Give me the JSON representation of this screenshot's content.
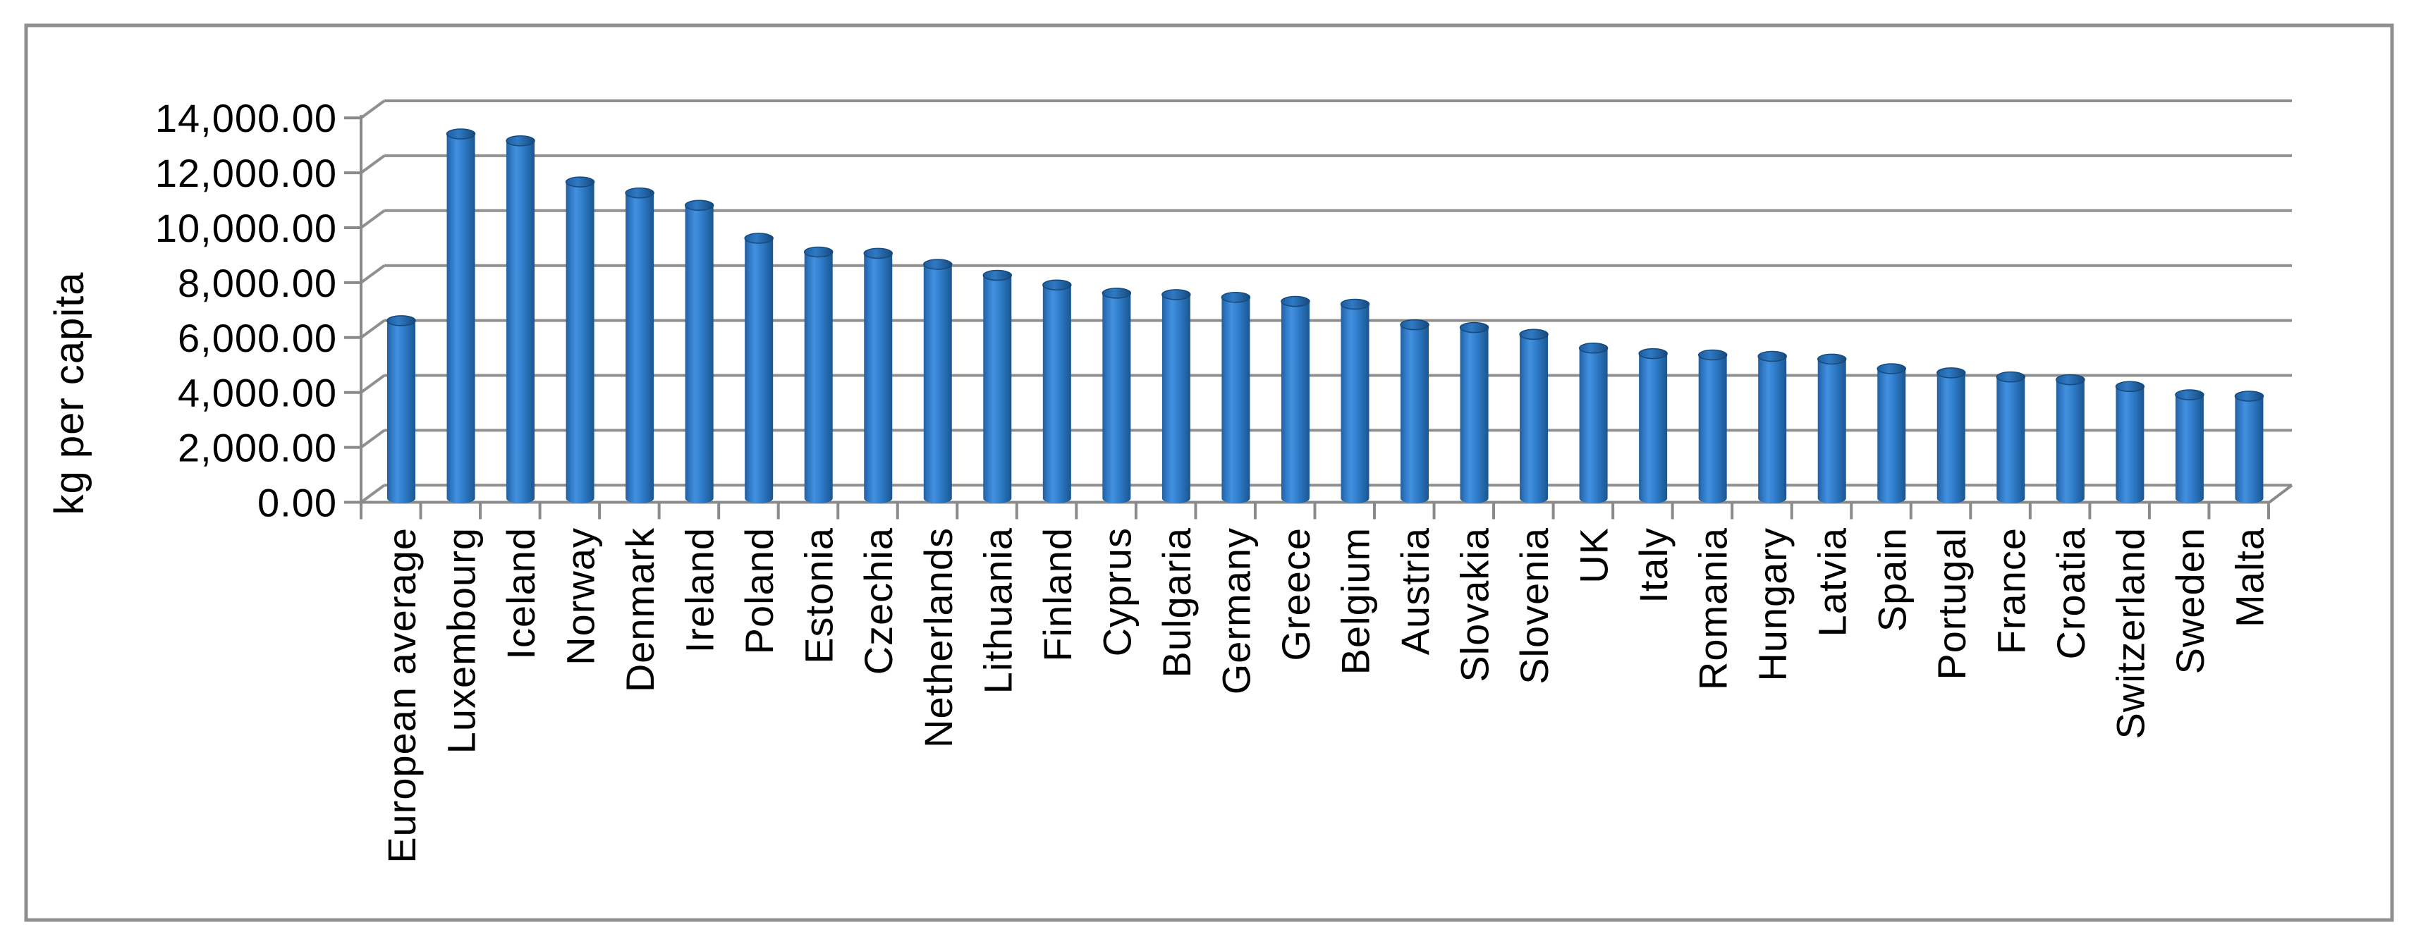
{
  "chart_data": {
    "type": "bar",
    "subtype": "3d-cylinder",
    "title": "",
    "xlabel": "",
    "ylabel": "kg per capita",
    "categories": [
      "European average",
      "Luxembourg",
      "Iceland",
      "Norway",
      "Denmark",
      "Ireland",
      "Poland",
      "Estonia",
      "Czechia",
      "Netherlands",
      "Lithuania",
      "Finland",
      "Cyprus",
      "Bulgaria",
      "Germany",
      "Greece",
      "Belgium",
      "Austria",
      "Slovakia",
      "Slovenia",
      "UK",
      "Italy",
      "Romania",
      "Hungary",
      "Latvia",
      "Spain",
      "Portugal",
      "France",
      "Croatia",
      "Switzerland",
      "Sweden",
      "Malta"
    ],
    "values": [
      6500,
      13300,
      13050,
      11550,
      11150,
      10700,
      9500,
      9000,
      8950,
      8550,
      8150,
      7800,
      7500,
      7450,
      7350,
      7200,
      7100,
      6350,
      6250,
      6000,
      5500,
      5300,
      5250,
      5200,
      5100,
      4750,
      4600,
      4450,
      4350,
      4100,
      3800,
      3750
    ],
    "y_ticks": [
      "0.00",
      "2,000.00",
      "4,000.00",
      "6,000.00",
      "8,000.00",
      "10,000.00",
      "12,000.00",
      "14,000.00"
    ],
    "ylim": [
      0,
      14000
    ],
    "y_step": 2000,
    "grid": true,
    "legend": false,
    "colors": {
      "bar_main": "#2e77c6",
      "bar_light": "#4390e0",
      "bar_dark": "#1a568f",
      "cap_dark": "#16497c",
      "gridline": "#909090",
      "axis": "#8a8a8a",
      "frame": "#8f8f8f",
      "text": "#000000",
      "background": "#ffffff"
    }
  }
}
